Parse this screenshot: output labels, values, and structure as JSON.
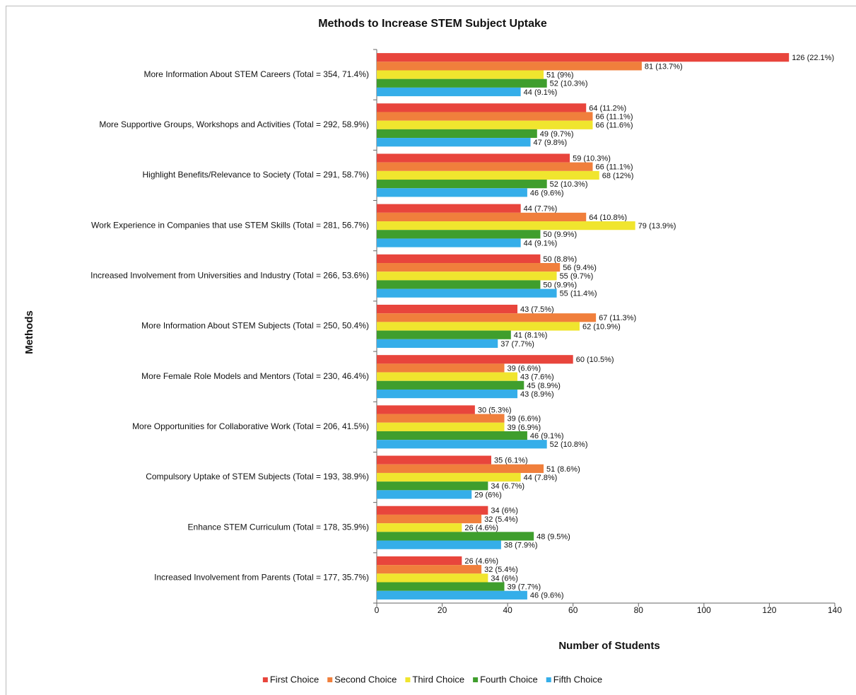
{
  "chart_data": {
    "type": "hbar",
    "title": "Methods to Increase STEM Subject Uptake",
    "x_label": "Number of Students",
    "y_label": "Methods",
    "categories": [
      "More Information About STEM Careers (Total = 354, 71.4%)",
      "More Supportive Groups, Workshops and Activities (Total = 292, 58.9%)",
      "Highlight Benefits/Relevance to Society (Total = 291, 58.7%)",
      "Work Experience in Companies that use STEM Skills (Total = 281, 56.7%)",
      "Increased Involvement from Universities and Industry (Total = 266, 53.6%)",
      "More Information About STEM Subjects (Total = 250, 50.4%)",
      "More Female Role Models and Mentors (Total = 230, 46.4%)",
      "More Opportunities for Collaborative Work (Total = 206, 41.5%)",
      "Compulsory Uptake of STEM Subjects (Total = 193, 38.9%)",
      "Enhance STEM Curriculum (Total = 178, 35.9%)",
      "Increased Involvement from Parents (Total = 177, 35.7%)"
    ],
    "series": [
      {
        "name": "First Choice",
        "color": "#e8453c",
        "values": [
          126,
          64,
          59,
          44,
          50,
          43,
          60,
          30,
          35,
          34,
          26
        ],
        "value_labels": [
          "126 (22.1%)",
          "64 (11.2%)",
          "59 (10.3%)",
          "44 (7.7%)",
          "50 (8.8%)",
          "43 (7.5%)",
          "60 (10.5%)",
          "30 (5.3%)",
          "35 (6.1%)",
          "34 (6%)",
          "26 (4.6%)"
        ]
      },
      {
        "name": "Second Choice",
        "color": "#f07f3c",
        "values": [
          81,
          66,
          66,
          64,
          56,
          67,
          39,
          39,
          51,
          32,
          32
        ],
        "value_labels": [
          "81 (13.7%)",
          "66 (11.1%)",
          "66 (11.1%)",
          "64 (10.8%)",
          "56 (9.4%)",
          "67 (11.3%)",
          "39 (6.6%)",
          "39 (6.6%)",
          "51 (8.6%)",
          "32 (5.4%)",
          "32 (5.4%)"
        ]
      },
      {
        "name": "Third Choice",
        "color": "#f0e52e",
        "values": [
          51,
          66,
          68,
          79,
          55,
          62,
          43,
          39,
          44,
          26,
          34
        ],
        "value_labels": [
          "51 (9%)",
          "66 (11.6%)",
          "68 (12%)",
          "79 (13.9%)",
          "55 (9.7%)",
          "62 (10.9%)",
          "43 (7.6%)",
          "39 (6.9%)",
          "44 (7.8%)",
          "26 (4.6%)",
          "34 (6%)"
        ]
      },
      {
        "name": "Fourth Choice",
        "color": "#3f9e2d",
        "values": [
          52,
          49,
          52,
          50,
          50,
          41,
          45,
          46,
          34,
          48,
          39
        ],
        "value_labels": [
          "52 (10.3%)",
          "49 (9.7%)",
          "52 (10.3%)",
          "50 (9.9%)",
          "50 (9.9%)",
          "41 (8.1%)",
          "45 (8.9%)",
          "46 (9.1%)",
          "34 (6.7%)",
          "48 (9.5%)",
          "39 (7.7%)"
        ]
      },
      {
        "name": "Fifth Choice",
        "color": "#35aee9",
        "values": [
          44,
          47,
          46,
          44,
          55,
          37,
          43,
          52,
          29,
          38,
          46
        ],
        "value_labels": [
          "44 (9.1%)",
          "47 (9.8%)",
          "46 (9.6%)",
          "44 (9.1%)",
          "55 (11.4%)",
          "37 (7.7%)",
          "43 (8.9%)",
          "52 (10.8%)",
          "29 (6%)",
          "38 (7.9%)",
          "46 (9.6%)"
        ]
      }
    ],
    "xlim": [
      0,
      140
    ],
    "xticks": [
      0,
      20,
      40,
      60,
      80,
      100,
      120,
      140
    ],
    "legend": "bottom"
  }
}
